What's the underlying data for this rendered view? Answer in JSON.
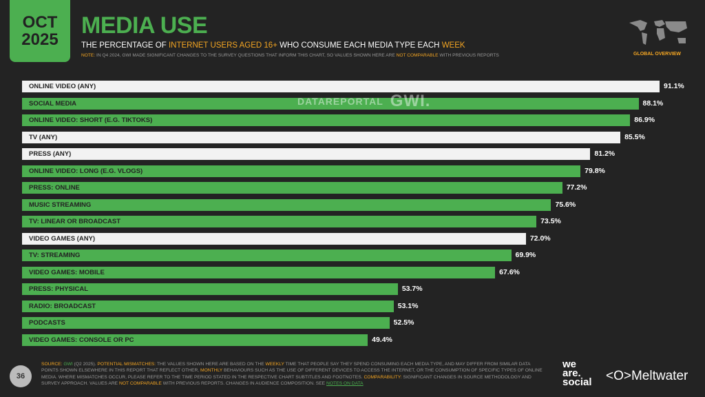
{
  "header": {
    "month": "OCT",
    "year": "2025",
    "title": "MEDIA USE",
    "subtitle": [
      {
        "t": "THE PERCENTAGE OF ",
        "h": false
      },
      {
        "t": "INTERNET USERS AGED 16+",
        "h": true
      },
      {
        "t": " WHO CONSUME EACH MEDIA TYPE EACH ",
        "h": false
      },
      {
        "t": "WEEK",
        "h": true
      }
    ],
    "note": [
      {
        "t": "NOTE:",
        "h": true
      },
      {
        "t": " IN Q4 2024, GWI MADE SIGNIFICANT CHANGES TO THE SURVEY QUESTIONS THAT INFORM THIS CHART, SO VALUES SHOWN HERE ARE ",
        "h": false
      },
      {
        "t": "NOT COMPARABLE",
        "h": true
      },
      {
        "t": " WITH PREVIOUS REPORTS",
        "h": false
      }
    ],
    "region": "GLOBAL OVERVIEW"
  },
  "watermark": {
    "left": "DATAREPORTAL",
    "right": "GWI."
  },
  "colors": {
    "background": "#232323",
    "green": "#4caf50",
    "white": "#f2f2f2",
    "accent": "#f5a623"
  },
  "chart_data": {
    "type": "bar",
    "orientation": "horizontal",
    "xlim": [
      0,
      100
    ],
    "value_suffix": "%",
    "categories": [
      "ONLINE VIDEO (ANY)",
      "SOCIAL MEDIA",
      "ONLINE VIDEO: SHORT (E.G. TIKTOKS)",
      "TV (ANY)",
      "PRESS (ANY)",
      "ONLINE VIDEO: LONG (E.G. VLOGS)",
      "PRESS: ONLINE",
      "MUSIC STREAMING",
      "TV: LINEAR OR BROADCAST",
      "VIDEO GAMES (ANY)",
      "TV: STREAMING",
      "VIDEO GAMES: MOBILE",
      "PRESS: PHYSICAL",
      "RADIO: BROADCAST",
      "PODCASTS",
      "VIDEO GAMES: CONSOLE OR PC"
    ],
    "values": [
      91.1,
      88.1,
      86.9,
      85.5,
      81.2,
      79.8,
      77.2,
      75.6,
      73.5,
      72.0,
      69.9,
      67.6,
      53.7,
      53.1,
      52.5,
      49.4
    ],
    "highlight_aggregate": [
      true,
      false,
      false,
      true,
      true,
      false,
      false,
      false,
      false,
      true,
      false,
      false,
      false,
      false,
      false,
      false
    ]
  },
  "footer": {
    "page": "36",
    "text": [
      {
        "t": "SOURCE: ",
        "c": "h"
      },
      {
        "t": "GWI",
        "c": "g"
      },
      {
        "t": " (Q2 2025). ",
        "c": ""
      },
      {
        "t": "POTENTIAL MISMATCHES:",
        "c": "h"
      },
      {
        "t": " THE VALUES SHOWN HERE ARE BASED ON THE ",
        "c": ""
      },
      {
        "t": "WEEKLY",
        "c": "h"
      },
      {
        "t": " TIME THAT PEOPLE SAY THEY SPEND CONSUMING EACH MEDIA TYPE, AND MAY DIFFER FROM SIMILAR DATA POINTS SHOWN ELSEWHERE IN THIS REPORT THAT REFLECT OTHER, ",
        "c": ""
      },
      {
        "t": "MONTHLY",
        "c": "h"
      },
      {
        "t": " BEHAVIOURS SUCH AS THE USE OF DIFFERENT DEVICES TO ACCESS THE INTERNET, OR THE CONSUMPTION OF SPECIFIC TYPES OF ONLINE MEDIA. WHERE MISMATCHES OCCUR, PLEASE REFER TO THE TIME PERIOD STATED IN THE RESPECTIVE CHART SUBTITLES AND FOOTNOTES. ",
        "c": ""
      },
      {
        "t": "COMPARABILITY:",
        "c": "h"
      },
      {
        "t": " SIGNIFICANT CHANGES IN SOURCE METHODOLOGY AND SURVEY APPROACH. VALUES ARE ",
        "c": ""
      },
      {
        "t": "NOT COMPARABLE",
        "c": "h"
      },
      {
        "t": " WITH PREVIOUS REPORTS. CHANGES IN AUDIENCE COMPOSITION. SEE ",
        "c": ""
      },
      {
        "t": "NOTES ON DATA",
        "c": "gu"
      }
    ],
    "logo_was": "we are. social",
    "logo_mw": "Meltwater"
  }
}
